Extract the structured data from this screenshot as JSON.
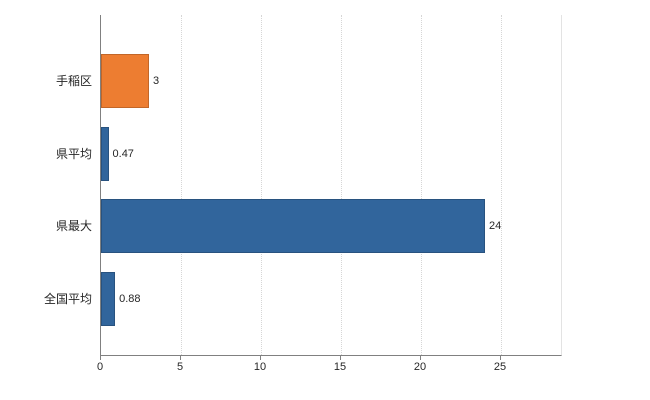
{
  "chart_data": {
    "type": "bar",
    "orientation": "horizontal",
    "title": "",
    "xlabel": "",
    "ylabel": "",
    "categories": [
      "手稲区",
      "県平均",
      "県最大",
      "全国平均"
    ],
    "values": [
      3,
      0.47,
      24,
      0.88
    ],
    "value_labels": [
      "3",
      "0.47",
      "24",
      "0.88"
    ],
    "bar_colors": [
      "#ED7D31",
      "#31659C",
      "#31659C",
      "#31659C"
    ],
    "xlim": [
      0,
      28.75
    ],
    "xticks": [
      0,
      5,
      10,
      15,
      20,
      25
    ],
    "grid": true,
    "legend": "none",
    "colors": {
      "accent_orange": "#ED7D31",
      "accent_blue": "#31659C",
      "axis": "#808080",
      "gridline": "#d6d6d6",
      "text": "#262626",
      "background": "#ffffff"
    }
  }
}
